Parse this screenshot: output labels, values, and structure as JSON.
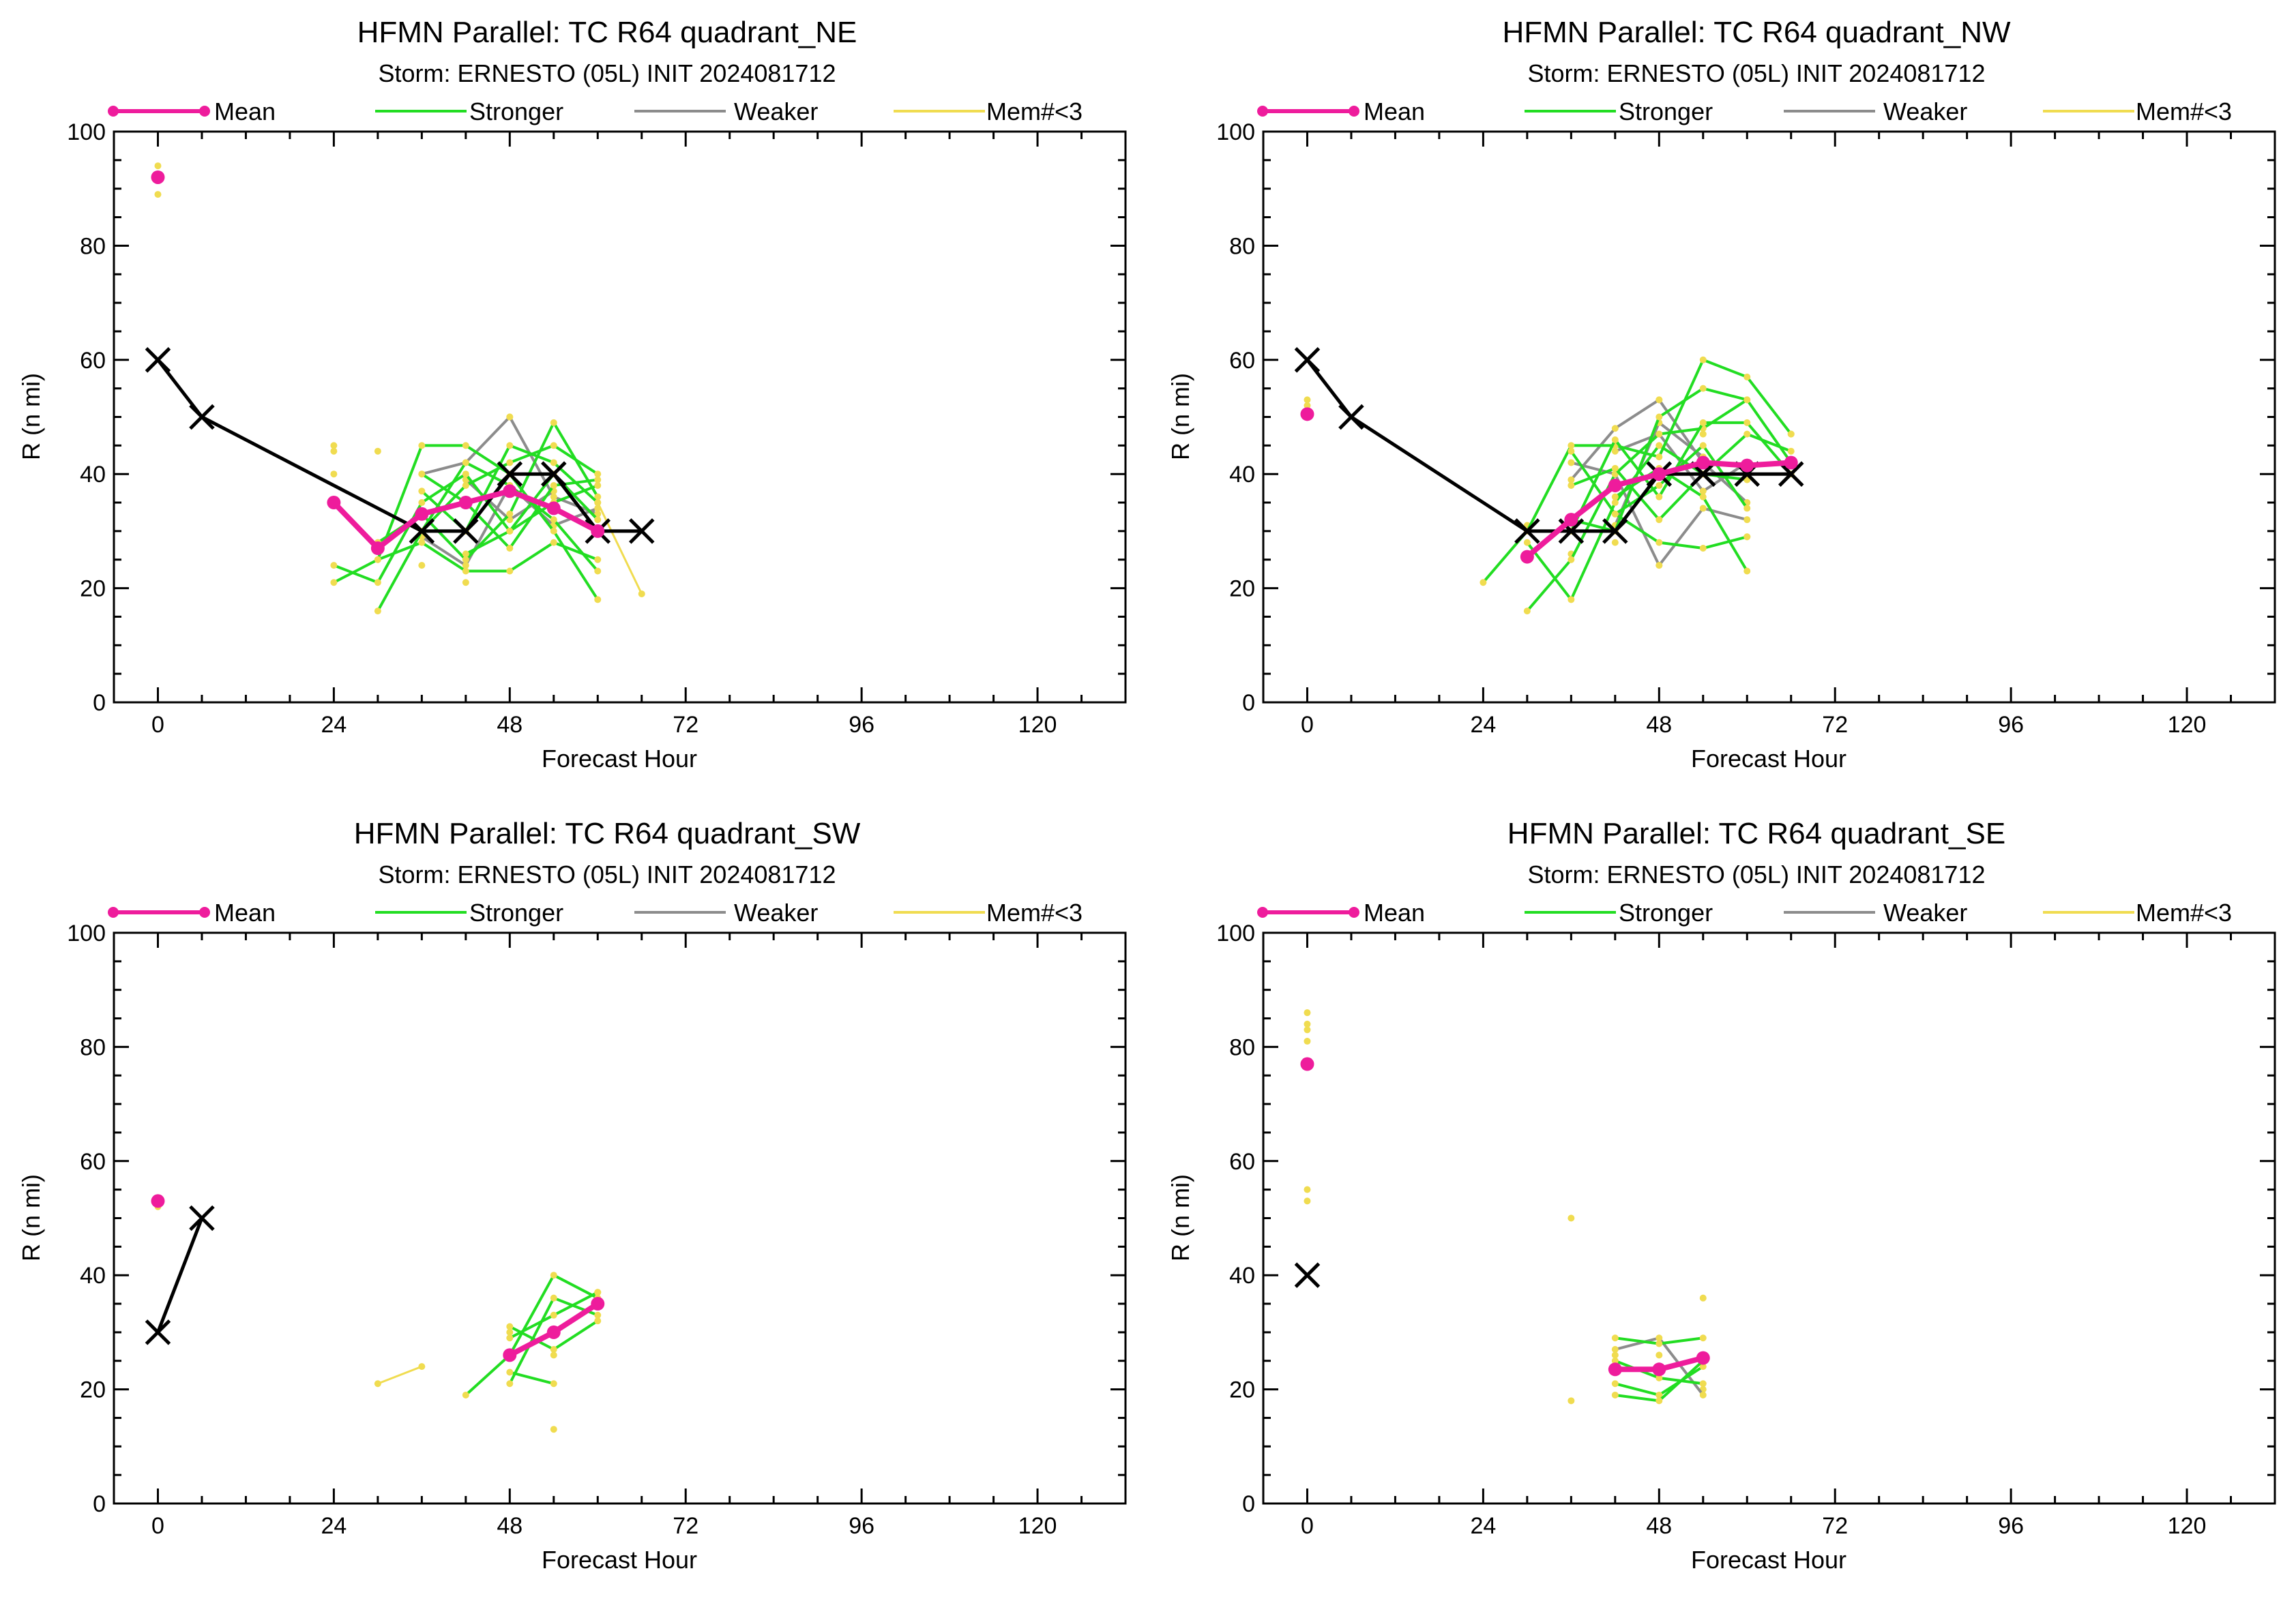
{
  "colors": {
    "mean": "#ee1c9c",
    "stronger": "#22dd22",
    "weaker": "#8c8c8c",
    "few_members": "#f0dc50",
    "best_track": "#000000"
  },
  "legend": {
    "mean": "Mean",
    "stronger": "Stronger",
    "weaker": "Weaker",
    "few_members": "Mem#<3"
  },
  "chart_data": [
    {
      "type": "line",
      "title": "HFMN Parallel: TC  R64 quadrant_NE",
      "subtitle": "Storm: ERNESTO (05L) INIT 2024081712",
      "xlabel": "Forecast Hour",
      "ylabel": "R (n mi)",
      "xlim": [
        -6,
        132
      ],
      "ylim": [
        0,
        100
      ],
      "xticks": [
        0,
        24,
        48,
        72,
        96,
        120
      ],
      "yticks": [
        0,
        20,
        40,
        60,
        80,
        100
      ],
      "best_track": [
        [
          0,
          60
        ],
        [
          6,
          50
        ],
        [
          36,
          30
        ],
        [
          42,
          30
        ],
        [
          48,
          40
        ],
        [
          54,
          40
        ],
        [
          60,
          30
        ],
        [
          66,
          30
        ]
      ],
      "mean": [
        [
          0,
          92
        ],
        [
          24,
          35
        ],
        [
          30,
          27
        ],
        [
          36,
          33
        ],
        [
          42,
          35
        ],
        [
          48,
          37
        ],
        [
          54,
          34
        ],
        [
          60,
          30
        ]
      ],
      "stronger": [
        [
          [
            24,
            21
          ],
          [
            30,
            25
          ],
          [
            36,
            45
          ],
          [
            42,
            45
          ],
          [
            48,
            40
          ],
          [
            54,
            30
          ],
          [
            60,
            18
          ]
        ],
        [
          [
            24,
            24
          ],
          [
            30,
            21
          ],
          [
            36,
            35
          ],
          [
            42,
            40
          ],
          [
            48,
            30
          ],
          [
            54,
            35
          ],
          [
            60,
            38
          ]
        ],
        [
          [
            30,
            16
          ],
          [
            36,
            30
          ],
          [
            42,
            38
          ],
          [
            48,
            42
          ],
          [
            54,
            45
          ],
          [
            60,
            40
          ]
        ],
        [
          [
            30,
            28
          ],
          [
            36,
            33
          ],
          [
            42,
            25
          ],
          [
            48,
            33
          ],
          [
            54,
            49
          ],
          [
            60,
            36
          ]
        ],
        [
          [
            30,
            25
          ],
          [
            36,
            28
          ],
          [
            42,
            23
          ],
          [
            48,
            23
          ],
          [
            54,
            28
          ],
          [
            60,
            25
          ]
        ],
        [
          [
            36,
            30
          ],
          [
            42,
            42
          ],
          [
            48,
            38
          ],
          [
            54,
            32
          ],
          [
            60,
            23
          ]
        ],
        [
          [
            36,
            37
          ],
          [
            42,
            30
          ],
          [
            48,
            45
          ],
          [
            54,
            42
          ],
          [
            60,
            35
          ]
        ],
        [
          [
            42,
            26
          ],
          [
            48,
            30
          ],
          [
            54,
            40
          ],
          [
            60,
            32
          ]
        ],
        [
          [
            36,
            40
          ],
          [
            42,
            35
          ],
          [
            48,
            27
          ],
          [
            54,
            38
          ],
          [
            60,
            39
          ]
        ]
      ],
      "weaker": [
        [
          [
            36,
            40
          ],
          [
            42,
            42
          ],
          [
            48,
            50
          ],
          [
            54,
            36
          ],
          [
            60,
            33
          ]
        ],
        [
          [
            36,
            29
          ],
          [
            42,
            24
          ],
          [
            48,
            38
          ],
          [
            54,
            31
          ],
          [
            60,
            34
          ]
        ],
        [
          [
            42,
            39
          ],
          [
            48,
            32
          ],
          [
            54,
            37
          ]
        ]
      ],
      "few_members": [
        [
          [
            0,
            94
          ]
        ],
        [
          [
            0,
            89
          ]
        ],
        [
          [
            24,
            45
          ]
        ],
        [
          [
            24,
            44
          ]
        ],
        [
          [
            24,
            40
          ]
        ],
        [
          [
            30,
            44
          ]
        ],
        [
          [
            36,
            24
          ]
        ],
        [
          [
            42,
            21
          ]
        ],
        [
          [
            48,
            50
          ]
        ],
        [
          [
            60,
            35
          ],
          [
            66,
            19
          ]
        ]
      ]
    },
    {
      "type": "line",
      "title": "HFMN Parallel: TC  R64 quadrant_NW",
      "subtitle": "Storm: ERNESTO (05L) INIT 2024081712",
      "xlabel": "Forecast Hour",
      "ylabel": "R (n mi)",
      "xlim": [
        -6,
        132
      ],
      "ylim": [
        0,
        100
      ],
      "xticks": [
        0,
        24,
        48,
        72,
        96,
        120
      ],
      "yticks": [
        0,
        20,
        40,
        60,
        80,
        100
      ],
      "best_track": [
        [
          0,
          60
        ],
        [
          6,
          50
        ],
        [
          30,
          30
        ],
        [
          36,
          30
        ],
        [
          42,
          30
        ],
        [
          48,
          40
        ],
        [
          54,
          40
        ],
        [
          60,
          40
        ],
        [
          66,
          40
        ]
      ],
      "mean": [
        [
          0,
          50.5
        ],
        [
          30,
          25.5
        ],
        [
          36,
          32
        ],
        [
          42,
          38
        ],
        [
          48,
          40
        ],
        [
          54,
          42
        ],
        [
          60,
          41.5
        ],
        [
          66,
          42
        ]
      ],
      "stronger": [
        [
          [
            24,
            21
          ],
          [
            30,
            30
          ],
          [
            36,
            45
          ],
          [
            42,
            45
          ],
          [
            48,
            43
          ],
          [
            54,
            60
          ],
          [
            60,
            57
          ],
          [
            66,
            47
          ]
        ],
        [
          [
            30,
            16
          ],
          [
            36,
            25
          ],
          [
            42,
            40
          ],
          [
            48,
            47
          ],
          [
            54,
            48
          ],
          [
            60,
            53
          ],
          [
            66,
            42
          ]
        ],
        [
          [
            30,
            28
          ],
          [
            36,
            18
          ],
          [
            42,
            35
          ],
          [
            48,
            45
          ],
          [
            54,
            40
          ],
          [
            60,
            47
          ],
          [
            66,
            44
          ]
        ],
        [
          [
            36,
            30
          ],
          [
            42,
            46
          ],
          [
            48,
            36
          ],
          [
            54,
            49
          ],
          [
            60,
            49
          ],
          [
            66,
            40
          ]
        ],
        [
          [
            36,
            38
          ],
          [
            42,
            41
          ],
          [
            48,
            32
          ],
          [
            54,
            40
          ],
          [
            60,
            39
          ]
        ],
        [
          [
            36,
            44
          ],
          [
            42,
            33
          ],
          [
            48,
            28
          ],
          [
            54,
            27
          ],
          [
            60,
            29
          ]
        ],
        [
          [
            36,
            32
          ],
          [
            42,
            30
          ],
          [
            48,
            50
          ],
          [
            54,
            55
          ],
          [
            60,
            53
          ]
        ],
        [
          [
            42,
            36
          ],
          [
            48,
            41
          ],
          [
            54,
            36
          ],
          [
            60,
            23
          ]
        ],
        [
          [
            42,
            33
          ],
          [
            48,
            38
          ],
          [
            54,
            45
          ],
          [
            60,
            34
          ]
        ]
      ],
      "weaker": [
        [
          [
            36,
            39
          ],
          [
            42,
            48
          ],
          [
            48,
            53
          ],
          [
            54,
            42
          ],
          [
            60,
            35
          ]
        ],
        [
          [
            36,
            42
          ],
          [
            42,
            40
          ],
          [
            48,
            24
          ],
          [
            54,
            34
          ],
          [
            60,
            32
          ]
        ],
        [
          [
            42,
            44
          ],
          [
            48,
            47
          ],
          [
            54,
            37
          ],
          [
            60,
            42
          ]
        ],
        [
          [
            42,
            31
          ],
          [
            48,
            49
          ],
          [
            54,
            43
          ]
        ]
      ],
      "few_members": [
        [
          [
            0,
            53
          ]
        ],
        [
          [
            0,
            52
          ]
        ],
        [
          [
            30,
            31
          ]
        ],
        [
          [
            36,
            26
          ]
        ],
        [
          [
            42,
            28
          ]
        ],
        [
          [
            48,
            53
          ]
        ],
        [
          [
            48,
            24
          ]
        ],
        [
          [
            54,
            47
          ]
        ],
        [
          [
            60,
            29
          ]
        ],
        [
          [
            66,
            47
          ]
        ]
      ]
    },
    {
      "type": "line",
      "title": "HFMN Parallel: TC  R64 quadrant_SW",
      "subtitle": "Storm: ERNESTO (05L) INIT 2024081712",
      "xlabel": "Forecast Hour",
      "ylabel": "R (n mi)",
      "xlim": [
        -6,
        132
      ],
      "ylim": [
        0,
        100
      ],
      "xticks": [
        0,
        24,
        48,
        72,
        96,
        120
      ],
      "yticks": [
        0,
        20,
        40,
        60,
        80,
        100
      ],
      "best_track": [
        [
          0,
          30
        ],
        [
          6,
          50
        ]
      ],
      "mean": [
        [
          0,
          53
        ],
        [
          48,
          26
        ],
        [
          54,
          30
        ],
        [
          60,
          35
        ]
      ],
      "stronger": [
        [
          [
            42,
            19
          ],
          [
            48,
            26
          ],
          [
            54,
            40
          ],
          [
            60,
            36
          ]
        ],
        [
          [
            48,
            21
          ],
          [
            54,
            36
          ],
          [
            60,
            33
          ]
        ],
        [
          [
            48,
            29
          ],
          [
            54,
            33
          ],
          [
            60,
            37
          ]
        ],
        [
          [
            48,
            31
          ],
          [
            54,
            27
          ],
          [
            60,
            32
          ]
        ],
        [
          [
            48,
            23
          ],
          [
            54,
            21
          ]
        ]
      ],
      "weaker": [],
      "few_members": [
        [
          [
            0,
            52
          ]
        ],
        [
          [
            30,
            21
          ],
          [
            36,
            24
          ]
        ],
        [
          [
            48,
            30
          ]
        ],
        [
          [
            54,
            13
          ]
        ],
        [
          [
            54,
            26
          ]
        ],
        [
          [
            60,
            37
          ]
        ]
      ]
    },
    {
      "type": "line",
      "title": "HFMN Parallel: TC  R64 quadrant_SE",
      "subtitle": "Storm: ERNESTO (05L) INIT 2024081712",
      "xlabel": "Forecast Hour",
      "ylabel": "R (n mi)",
      "xlim": [
        -6,
        132
      ],
      "ylim": [
        0,
        100
      ],
      "xticks": [
        0,
        24,
        48,
        72,
        96,
        120
      ],
      "yticks": [
        0,
        20,
        40,
        60,
        80,
        100
      ],
      "best_track": [
        [
          0,
          40
        ]
      ],
      "mean": [
        [
          0,
          77
        ],
        [
          42,
          23.5
        ],
        [
          48,
          23.5
        ],
        [
          54,
          25.5
        ]
      ],
      "stronger": [
        [
          [
            42,
            29
          ],
          [
            48,
            28
          ],
          [
            54,
            29
          ]
        ],
        [
          [
            42,
            21
          ],
          [
            48,
            19
          ],
          [
            54,
            24
          ]
        ],
        [
          [
            42,
            19
          ],
          [
            48,
            18
          ],
          [
            54,
            25
          ]
        ],
        [
          [
            42,
            25
          ],
          [
            48,
            22
          ],
          [
            54,
            21
          ]
        ]
      ],
      "weaker": [
        [
          [
            42,
            27
          ],
          [
            48,
            29
          ],
          [
            54,
            19
          ]
        ]
      ],
      "few_members": [
        [
          [
            0,
            86
          ]
        ],
        [
          [
            0,
            84
          ]
        ],
        [
          [
            0,
            83
          ]
        ],
        [
          [
            0,
            81
          ]
        ],
        [
          [
            0,
            55
          ]
        ],
        [
          [
            0,
            53
          ]
        ],
        [
          [
            36,
            50
          ]
        ],
        [
          [
            36,
            18
          ]
        ],
        [
          [
            42,
            26
          ]
        ],
        [
          [
            48,
            26
          ]
        ],
        [
          [
            54,
            36
          ]
        ],
        [
          [
            54,
            20
          ]
        ]
      ]
    }
  ]
}
